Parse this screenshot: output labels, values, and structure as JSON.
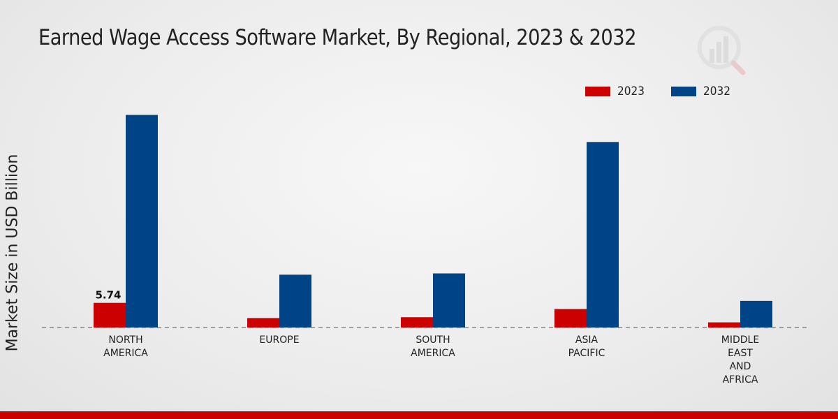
{
  "header": {
    "title": "Earned Wage Access Software Market, By Regional, 2023 & 2032"
  },
  "colors": {
    "series_2023": "#cc0000",
    "series_2032": "#004488",
    "accent_bar": "#cc0000"
  },
  "chart_data": {
    "type": "bar",
    "title": "Earned Wage Access Software Market, By Regional, 2023 & 2032",
    "xlabel": "",
    "ylabel": "Market Size in USD Billion",
    "ylim": [
      0,
      60
    ],
    "legend_position": "top-right",
    "categories": [
      [
        "NORTH",
        "AMERICA"
      ],
      [
        "EUROPE"
      ],
      [
        "SOUTH",
        "AMERICA"
      ],
      [
        "ASIA",
        "PACIFIC"
      ],
      [
        "MIDDLE",
        "EAST",
        "AND",
        "AFRICA"
      ]
    ],
    "series": [
      {
        "name": "2023",
        "color": "#cc0000",
        "values": [
          5.74,
          2.2,
          2.4,
          4.3,
          1.2
        ]
      },
      {
        "name": "2032",
        "color": "#004488",
        "values": [
          49.5,
          12.3,
          12.6,
          43.2,
          6.2
        ]
      }
    ],
    "data_labels": [
      {
        "series": 0,
        "category": 0,
        "text": "5.74"
      }
    ]
  }
}
